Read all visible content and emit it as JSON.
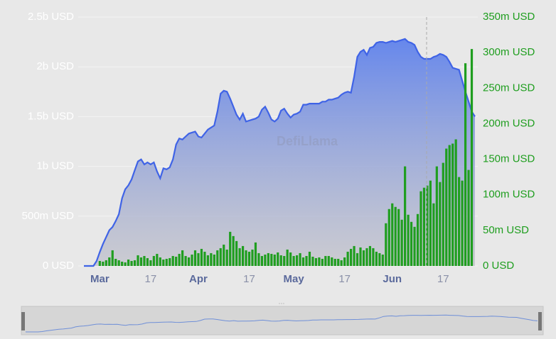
{
  "chart_data": {
    "type": "area",
    "watermark": "DefiLlama",
    "categories": [
      null,
      null,
      null,
      null,
      null,
      "Mar",
      null,
      null,
      null,
      null,
      null,
      null,
      null,
      null,
      null,
      null,
      null,
      null,
      null,
      null,
      null,
      "17",
      null,
      null,
      null,
      null,
      null,
      null,
      null,
      null,
      null,
      null,
      null,
      null,
      null,
      null,
      "Apr",
      null,
      null,
      null,
      null,
      null,
      null,
      null,
      null,
      null,
      null,
      null,
      null,
      null,
      null,
      null,
      "17",
      null,
      null,
      null,
      null,
      null,
      null,
      null,
      null,
      null,
      null,
      null,
      null,
      null,
      "May",
      null,
      null,
      null,
      null,
      null,
      null,
      null,
      null,
      null,
      null,
      null,
      null,
      null,
      null,
      null,
      "17",
      null,
      null,
      null,
      null,
      null,
      null,
      null,
      null,
      null,
      null,
      null,
      null,
      null,
      null,
      "Jun",
      null,
      null,
      null,
      null,
      null,
      null,
      null,
      null,
      null,
      null,
      null,
      null,
      null,
      null,
      null,
      "17",
      null,
      null,
      null,
      null,
      null,
      null,
      null,
      null,
      null,
      null
    ],
    "series": [
      {
        "color": "#3f63e6",
        "values": [
          0,
          0,
          0,
          0,
          50000000.0,
          140000000.0,
          220000000.0,
          290000000.0,
          360000000.0,
          390000000.0,
          450000000.0,
          520000000.0,
          680000000.0,
          770000000.0,
          810000000.0,
          870000000.0,
          960000000.0,
          1050000000.0,
          1070000000.0,
          1020000000.0,
          1040000000.0,
          1020000000.0,
          1040000000.0,
          950000000.0,
          880000000.0,
          980000000.0,
          970000000.0,
          990000000.0,
          1070000000.0,
          1220000000.0,
          1280000000.0,
          1270000000.0,
          1300000000.0,
          1330000000.0,
          1340000000.0,
          1350000000.0,
          1300000000.0,
          1290000000.0,
          1330000000.0,
          1370000000.0,
          1390000000.0,
          1410000000.0,
          1550000000.0,
          1730000000.0,
          1760000000.0,
          1750000000.0,
          1680000000.0,
          1600000000.0,
          1520000000.0,
          1470000000.0,
          1530000000.0,
          1450000000.0,
          1460000000.0,
          1470000000.0,
          1480000000.0,
          1500000000.0,
          1570000000.0,
          1600000000.0,
          1540000000.0,
          1470000000.0,
          1450000000.0,
          1480000000.0,
          1560000000.0,
          1580000000.0,
          1530000000.0,
          1490000000.0,
          1520000000.0,
          1530000000.0,
          1550000000.0,
          1620000000.0,
          1620000000.0,
          1630000000.0,
          1630000000.0,
          1630000000.0,
          1630000000.0,
          1650000000.0,
          1650000000.0,
          1670000000.0,
          1670000000.0,
          1680000000.0,
          1690000000.0,
          1720000000.0,
          1740000000.0,
          1750000000.0,
          1740000000.0,
          1900000000.0,
          2100000000.0,
          2150000000.0,
          2170000000.0,
          2120000000.0,
          2190000000.0,
          2200000000.0,
          2240000000.0,
          2250000000.0,
          2250000000.0,
          2240000000.0,
          2250000000.0,
          2260000000.0,
          2250000000.0,
          2260000000.0,
          2270000000.0,
          2280000000.0,
          2250000000.0,
          2240000000.0,
          2220000000.0,
          2150000000.0,
          2100000000.0,
          2080000000.0,
          2080000000.0,
          2080000000.0,
          2100000000.0,
          2110000000.0,
          2130000000.0,
          2120000000.0,
          2100000000.0,
          2050000000.0,
          1990000000.0,
          1980000000.0,
          1970000000.0,
          1860000000.0,
          1750000000.0,
          1650000000.0,
          1550000000.0,
          1500000000.0
        ]
      },
      {
        "type": "bar",
        "axis": "y2",
        "color": "#1f9e1f",
        "values": [
          0,
          0,
          0,
          0,
          0,
          7000000.0,
          6000000.0,
          8000000.0,
          12000000.0,
          22000000.0,
          10000000.0,
          8000000.0,
          6000000.0,
          5000000.0,
          9000000.0,
          7000000.0,
          8000000.0,
          15000000.0,
          12000000.0,
          14000000.0,
          11000000.0,
          8000000.0,
          14000000.0,
          17000000.0,
          12000000.0,
          9000000.0,
          10000000.0,
          11000000.0,
          14000000.0,
          13000000.0,
          17000000.0,
          22000000.0,
          14000000.0,
          12000000.0,
          16000000.0,
          22000000.0,
          18000000.0,
          24000000.0,
          20000000.0,
          15000000.0,
          18000000.0,
          16000000.0,
          22000000.0,
          25000000.0,
          30000000.0,
          23000000.0,
          48000000.0,
          42000000.0,
          35000000.0,
          25000000.0,
          28000000.0,
          22000000.0,
          20000000.0,
          23000000.0,
          33000000.0,
          18000000.0,
          14000000.0,
          16000000.0,
          18000000.0,
          17000000.0,
          16000000.0,
          19000000.0,
          15000000.0,
          14000000.0,
          23000000.0,
          19000000.0,
          14000000.0,
          15000000.0,
          18000000.0,
          12000000.0,
          14000000.0,
          20000000.0,
          13000000.0,
          11000000.0,
          12000000.0,
          10000000.0,
          14000000.0,
          14000000.0,
          12000000.0,
          10000000.0,
          10000000.0,
          8000000.0,
          12000000.0,
          20000000.0,
          24000000.0,
          28000000.0,
          18000000.0,
          26000000.0,
          22000000.0,
          25000000.0,
          28000000.0,
          25000000.0,
          20000000.0,
          18000000.0,
          16000000.0,
          60000000.0,
          80000000.0,
          88000000.0,
          83000000.0,
          80000000.0,
          65000000.0,
          140000000.0,
          72000000.0,
          62000000.0,
          55000000.0,
          73000000.0,
          105000000.0,
          110000000.0,
          113000000.0,
          120000000.0,
          88000000.0,
          140000000.0,
          118000000.0,
          145000000.0,
          165000000.0,
          170000000.0,
          172000000.0,
          178000000.0,
          125000000.0,
          120000000.0,
          285000000.0,
          135000000.0,
          305000000.0,
          0
        ]
      }
    ],
    "ylim": [
      0,
      2500000000
    ],
    "yticks": [
      {
        "value": 0,
        "label": "0 USD"
      },
      {
        "value": 500000000,
        "label": "500m USD"
      },
      {
        "value": 1000000000,
        "label": "1b USD"
      },
      {
        "value": 1500000000,
        "label": "1.5b USD"
      },
      {
        "value": 2000000000,
        "label": "2b USD"
      },
      {
        "value": 2500000000,
        "label": "2.5b USD"
      }
    ],
    "y2lim": [
      0,
      350000000
    ],
    "y2ticks": [
      {
        "value": 0,
        "label": "0 USD"
      },
      {
        "value": 50000000,
        "label": "50m USD"
      },
      {
        "value": 100000000,
        "label": "100m USD"
      },
      {
        "value": 150000000,
        "label": "150m USD"
      },
      {
        "value": 200000000,
        "label": "200m USD"
      },
      {
        "value": 250000000,
        "label": "250m USD"
      },
      {
        "value": 300000000,
        "label": "300m USD"
      },
      {
        "value": 350000000,
        "label": "350m USD"
      }
    ],
    "grid": true
  }
}
